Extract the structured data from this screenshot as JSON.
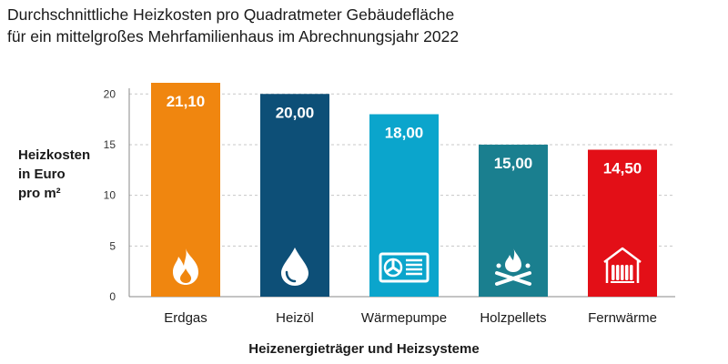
{
  "title": {
    "line1": "Durchschnittliche Heizkosten pro Quadratmeter Gebäudefläche",
    "line2": "für ein mittelgroßes Mehrfamilienhaus im Abrechnungsjahr 2022"
  },
  "ylabel": {
    "line1": "Heizkosten",
    "line2": "in Euro",
    "line3": "pro m²"
  },
  "xlabel": "Heizenergieträger und Heizsysteme",
  "chart_data": {
    "type": "bar",
    "title": "Durchschnittliche Heizkosten pro Quadratmeter Gebäudefläche für ein mittelgroßes Mehrfamilienhaus im Abrechnungsjahr 2022",
    "xlabel": "Heizenergieträger und Heizsysteme",
    "ylabel": "Heizkosten in Euro pro m²",
    "categories": [
      "Erdgas",
      "Heizöl",
      "Wärmepumpe",
      "Holzpellets",
      "Fernwärme"
    ],
    "values": [
      21.1,
      20.0,
      18.0,
      15.0,
      14.5
    ],
    "value_labels": [
      "21,10",
      "20,00",
      "18,00",
      "15,00",
      "14,50"
    ],
    "colors": [
      "#f0860f",
      "#0d4f77",
      "#0ba5cc",
      "#1a7f8f",
      "#e30f17"
    ],
    "icons": [
      "flame-icon",
      "oil-drop-icon",
      "heat-pump-icon",
      "pellet-fire-icon",
      "radiator-house-icon"
    ],
    "yticks": [
      0,
      5,
      10,
      15,
      20
    ],
    "ylim": [
      0,
      21.1
    ],
    "grid": true
  }
}
